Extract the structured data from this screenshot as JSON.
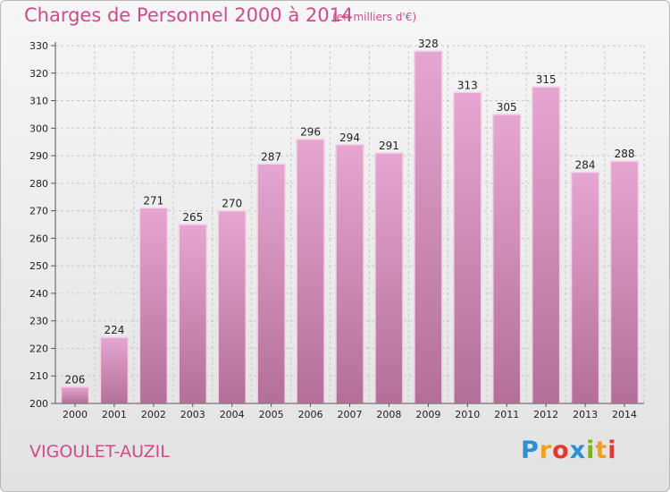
{
  "header": {
    "title": "Charges de Personnel 2000 à 2014",
    "subtitle": "(en milliers d'€)"
  },
  "footer": {
    "place": "VIGOULET-AUZIL",
    "logo_letters": [
      "P",
      "r",
      "o",
      "x",
      "i",
      "t",
      "i"
    ],
    "logo_colors": [
      "#2a8fd6",
      "#f2a01d",
      "#e23a2c",
      "#2a8fd6",
      "#7ab51d",
      "#f2a01d",
      "#e23a2c"
    ]
  },
  "colors": {
    "bar_top": "#e6a6d1",
    "bar_bottom": "#b36f97",
    "bar_edge": "#f3d2e7",
    "grid": "#c9c9c9",
    "text_accent": "#d24a8a"
  },
  "chart_data": {
    "type": "bar",
    "title": "Charges de Personnel 2000 à 2014",
    "subtitle": "(en milliers d'€)",
    "xlabel": "",
    "ylabel": "",
    "categories": [
      "2000",
      "2001",
      "2002",
      "2003",
      "2004",
      "2005",
      "2006",
      "2007",
      "2008",
      "2009",
      "2010",
      "2011",
      "2012",
      "2013",
      "2014"
    ],
    "values": [
      206,
      224,
      271,
      265,
      270,
      287,
      296,
      294,
      291,
      328,
      313,
      305,
      315,
      284,
      288
    ],
    "ylim": [
      200,
      330
    ],
    "yticks": [
      200,
      210,
      220,
      230,
      240,
      250,
      260,
      270,
      280,
      290,
      300,
      310,
      320,
      330
    ],
    "grid": true,
    "legend": "none"
  }
}
